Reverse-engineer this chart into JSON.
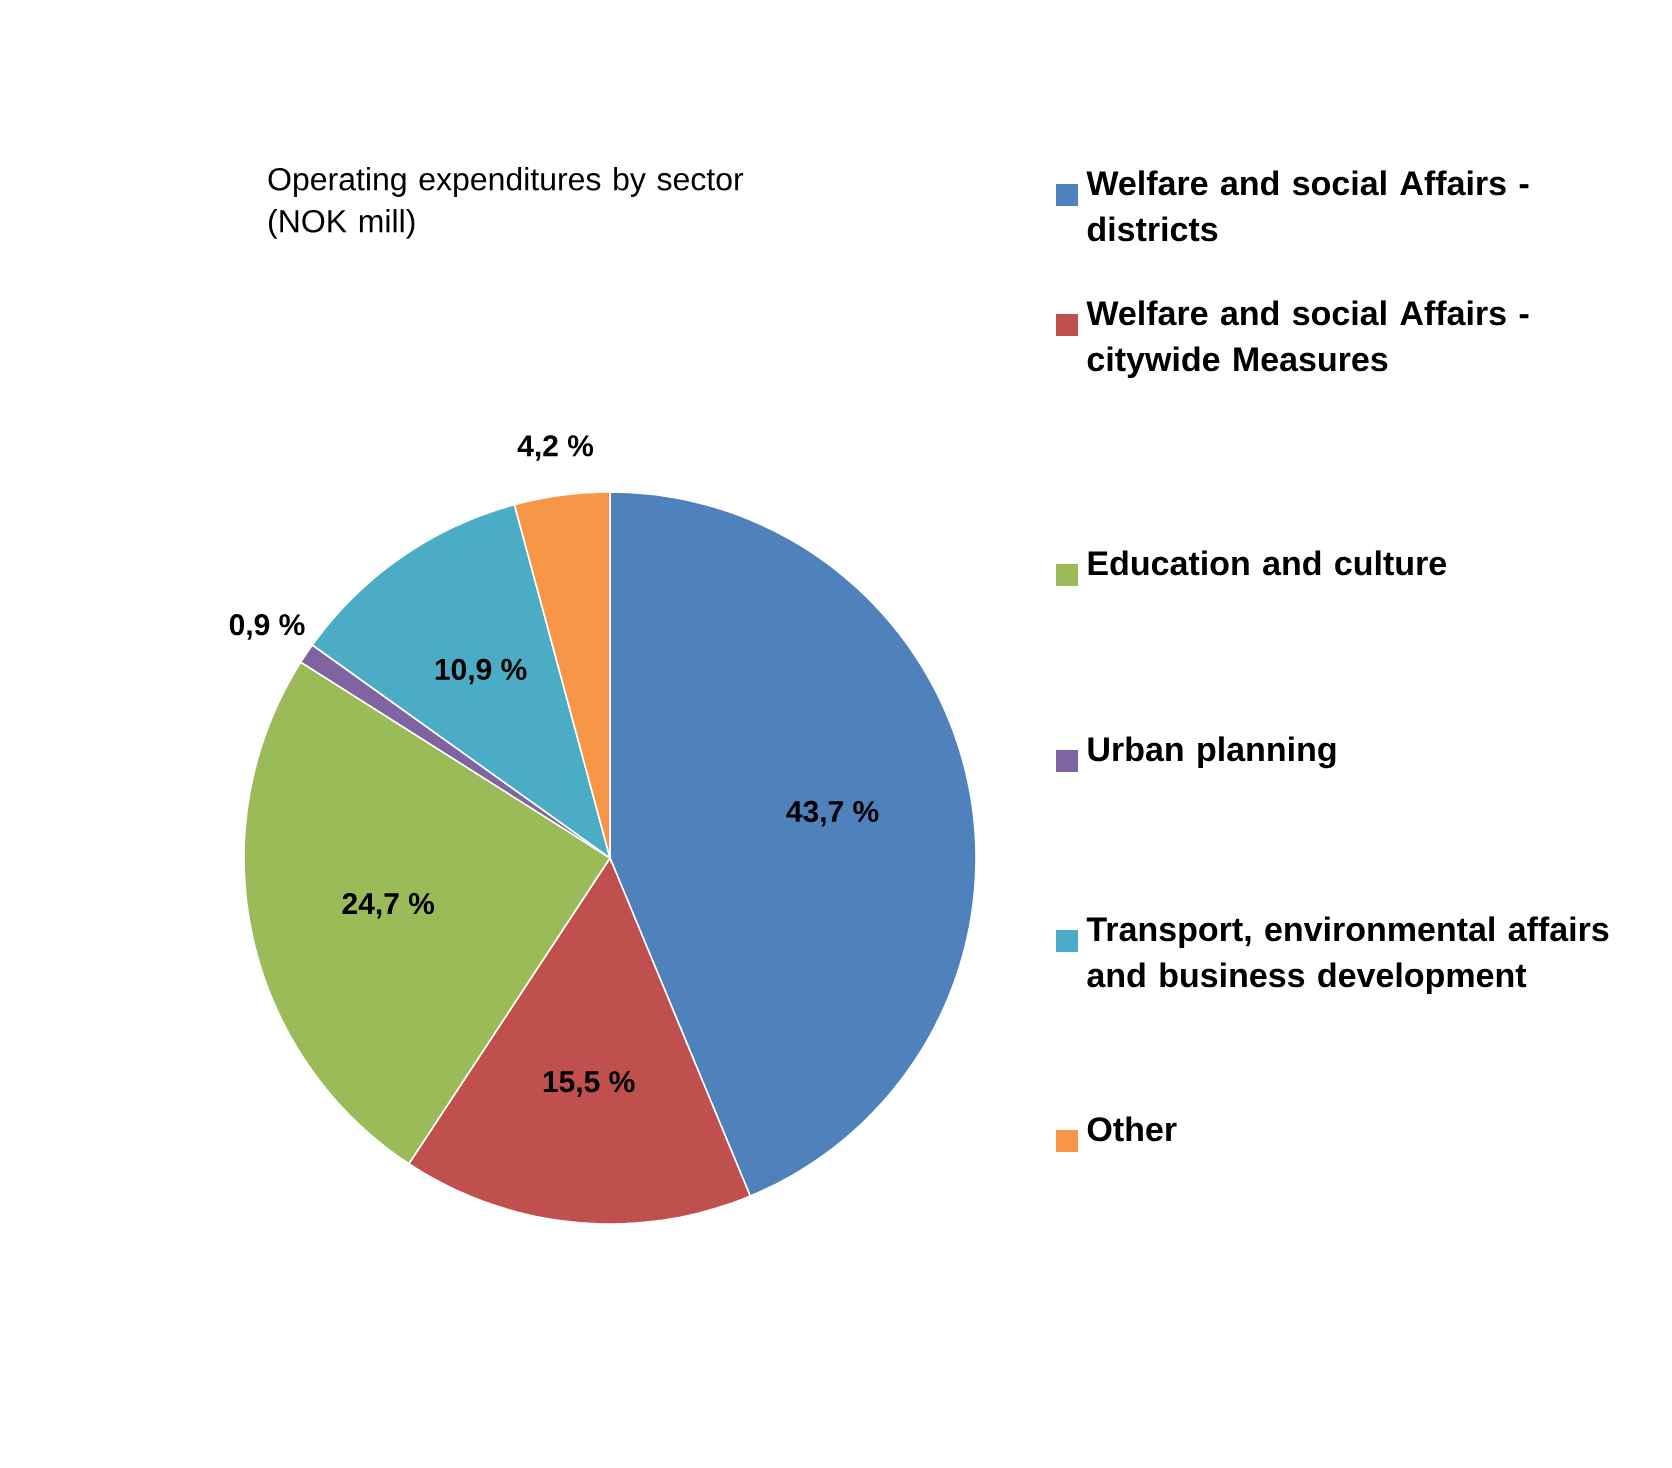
{
  "chart_data": {
    "type": "pie",
    "title": "Operating expenditures by sector  (NOK mill)",
    "categories": [
      "Welfare and social Affairs - districts",
      "Welfare and social Affairs - citywide Measures",
      "Education and culture",
      "Urban planning",
      "Transport, environmental affairs and business development",
      "Other"
    ],
    "values": [
      43.7,
      15.5,
      24.7,
      0.9,
      10.9,
      4.2
    ],
    "value_labels": [
      "43,7 %",
      "15,5 %",
      "24,7 %",
      "0,9 %",
      "10,9 %",
      "4,2 %"
    ],
    "colors": [
      "#4f81bd",
      "#c0504d",
      "#9bbb59",
      "#8064a2",
      "#4bacc6",
      "#f79646"
    ],
    "legend": "right"
  }
}
